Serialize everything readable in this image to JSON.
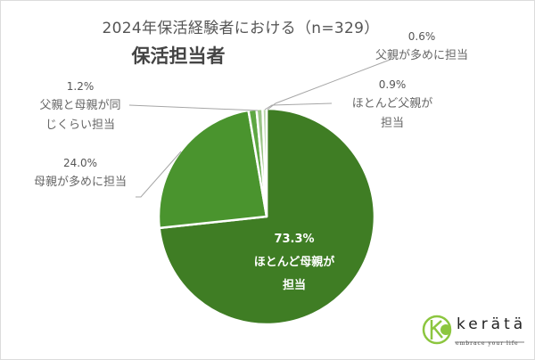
{
  "chart_data": {
    "type": "pie",
    "title": "2024年保活経験者における（n=329）",
    "subtitle": "保活担当者",
    "start_angle": "12 o'clock, clockwise",
    "slices": [
      {
        "label": "ほとんど母親が担当",
        "value": 73.3,
        "pct_text": "73.3%",
        "color": "#3f7d24"
      },
      {
        "label": "母親が多めに担当",
        "value": 24.0,
        "pct_text": "24.0%",
        "color": "#4a942e"
      },
      {
        "label": "父親と母親が同じくらい担当",
        "value": 1.2,
        "pct_text": "1.2%",
        "color": "#5ea743"
      },
      {
        "label": "ほとんど父親が担当",
        "value": 0.9,
        "pct_text": "0.9%",
        "color": "#9bc487"
      },
      {
        "label": "父親が多めに担当",
        "value": 0.6,
        "pct_text": "0.6%",
        "color": "#b8d6aa"
      }
    ]
  },
  "labels": {
    "mostly_mother": {
      "pct": "73.3%",
      "line1": "ほとんど母親が",
      "line2": "担当"
    },
    "more_mother": {
      "pct": "24.0%",
      "line1": "母親が多めに担当"
    },
    "equal": {
      "pct": "1.2%",
      "line1": "父親と母親が同",
      "line2": "じくらい担当"
    },
    "mostly_father": {
      "pct": "0.9%",
      "line1": "ほとんど父親が",
      "line2": "担当"
    },
    "more_father": {
      "pct": "0.6%",
      "line1": "父親が多めに担当"
    }
  },
  "logo": {
    "name": "kerätä",
    "tagline": "embrace your life",
    "color": "#8cc63f"
  }
}
